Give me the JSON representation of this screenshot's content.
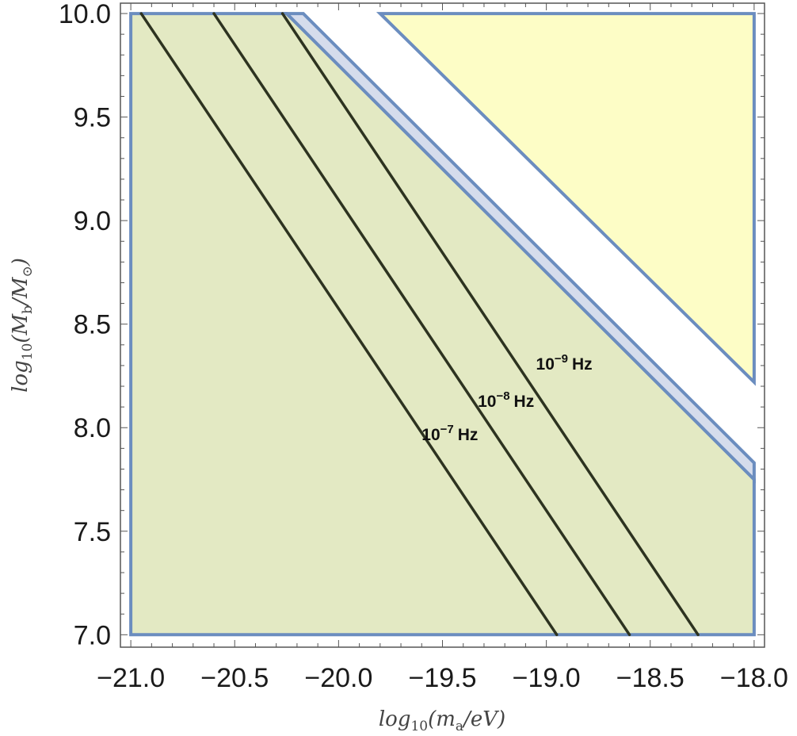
{
  "chart_data": {
    "type": "line",
    "xlabel": {
      "pre": "log",
      "sub": "10",
      "post": "(m",
      "sub2": "a",
      "post2": "/eV)"
    },
    "ylabel": {
      "pre": "log",
      "sub": "10",
      "post": "(M",
      "sub2": "b",
      "post2": "/M",
      "sub3": "⊙",
      "post3": ")"
    },
    "xlim": [
      -21.0,
      -18.0
    ],
    "ylim": [
      7.0,
      10.0
    ],
    "x_ticks": [
      -21.0,
      -20.5,
      -20.0,
      -19.5,
      -19.0,
      -18.5,
      -18.0
    ],
    "x_tick_labels": [
      "−21.0",
      "−20.5",
      "−20.0",
      "−19.5",
      "−19.0",
      "−18.5",
      "−18.0"
    ],
    "y_ticks": [
      7.0,
      7.5,
      8.0,
      8.5,
      9.0,
      9.5,
      10.0
    ],
    "y_tick_labels": [
      "7.0",
      "7.5",
      "8.0",
      "8.5",
      "9.0",
      "9.5",
      "10.0"
    ],
    "grid": false,
    "regions": [
      {
        "name": "",
        "fill": "#e3e9c3",
        "stroke": "#6b8dbf",
        "polygon": [
          [
            -21.0,
            7.0
          ],
          [
            -21.0,
            10.0
          ],
          [
            -20.25,
            10.0
          ],
          [
            -18.0,
            7.75
          ],
          [
            -18.0,
            7.0
          ]
        ]
      },
      {
        "name": "",
        "fill": "#d5dcec",
        "stroke": "#6b8dbf",
        "polygon": [
          [
            -20.25,
            10.0
          ],
          [
            -20.17,
            10.0
          ],
          [
            -18.0,
            7.83
          ],
          [
            -18.0,
            7.75
          ]
        ]
      },
      {
        "name": "",
        "fill": "#fdfdc6",
        "stroke": "#6b8dbf",
        "polygon": [
          [
            -19.8,
            10.0
          ],
          [
            -18.0,
            10.0
          ],
          [
            -18.0,
            8.22
          ]
        ]
      }
    ],
    "series": [
      {
        "points": [
          [
            -20.95,
            10.0
          ],
          [
            -18.95,
            7.0
          ]
        ]
      },
      {
        "points": [
          [
            -20.6,
            10.0
          ],
          [
            -18.6,
            7.0
          ]
        ]
      },
      {
        "points": [
          [
            -20.27,
            10.0
          ],
          [
            -18.27,
            7.0
          ]
        ]
      }
    ],
    "annotations": [
      {
        "base": "10",
        "exp": "−7",
        "unit": "Hz",
        "at": [
          -19.6,
          7.94
        ]
      },
      {
        "base": "10",
        "exp": "−8",
        "unit": "Hz",
        "at": [
          -19.33,
          8.1
        ]
      },
      {
        "base": "10",
        "exp": "−9",
        "unit": "Hz",
        "at": [
          -19.05,
          8.28
        ]
      }
    ],
    "line_color": "#2d3320"
  }
}
